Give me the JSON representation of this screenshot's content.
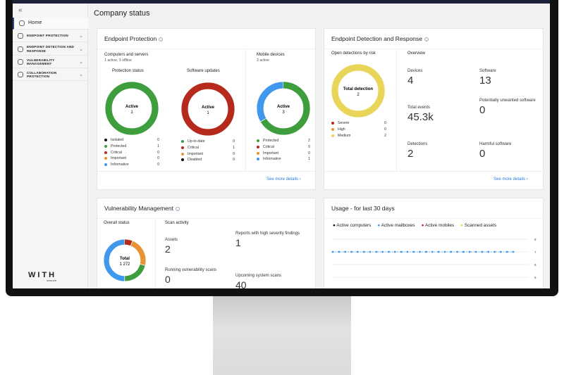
{
  "sidebar": {
    "collapse_icon": "double-chevron-left",
    "home": "Home",
    "items": [
      {
        "label": "ENDPOINT PROTECTION"
      },
      {
        "label": "ENDPOINT DETECTION AND RESPONSE"
      },
      {
        "label": "VULNERABILITY MANAGEMENT"
      },
      {
        "label": "COLLABORATION PROTECTION"
      }
    ],
    "logo": "WITH",
    "logo_sub": "secure"
  },
  "page_title": "Company status",
  "colors": {
    "green": "#3e9e3e",
    "red": "#b52a1c",
    "orange": "#e89434",
    "blue": "#3f98ec",
    "yellow": "#e8d55a",
    "black": "#111111",
    "link": "#2b7bd5"
  },
  "ep": {
    "title": "Endpoint Protection",
    "computers_title": "Computers and servers",
    "computers_sub": "1 active, 3 offline",
    "mobile_title": "Mobile devices",
    "mobile_sub": "3 active",
    "more": "See more details",
    "protection": {
      "title": "Protection status",
      "center_label": "Active",
      "center_value": "1",
      "items": [
        {
          "label": "Isolated",
          "value": 0,
          "color": "#111111"
        },
        {
          "label": "Protected",
          "value": 1,
          "color": "#3e9e3e"
        },
        {
          "label": "Critical",
          "value": 0,
          "color": "#b52a1c"
        },
        {
          "label": "Important",
          "value": 0,
          "color": "#e89434"
        },
        {
          "label": "Informative",
          "value": 0,
          "color": "#3f98ec"
        }
      ]
    },
    "updates": {
      "title": "Software updates",
      "center_label": "Active",
      "center_value": "1",
      "items": [
        {
          "label": "Up-to-date",
          "value": 0,
          "color": "#3e9e3e"
        },
        {
          "label": "Critical",
          "value": 1,
          "color": "#b52a1c"
        },
        {
          "label": "Important",
          "value": 0,
          "color": "#e89434"
        },
        {
          "label": "Disabled",
          "value": 0,
          "color": "#111111"
        }
      ]
    },
    "mobile": {
      "center_label": "Active",
      "center_value": "3",
      "items": [
        {
          "label": "Protected",
          "value": 2,
          "color": "#3e9e3e"
        },
        {
          "label": "Critical",
          "value": 0,
          "color": "#b52a1c"
        },
        {
          "label": "Important",
          "value": 0,
          "color": "#e89434"
        },
        {
          "label": "Informative",
          "value": 1,
          "color": "#3f98ec"
        }
      ]
    }
  },
  "edr": {
    "title": "Endpoint Detection and Response",
    "risk_title": "Open detections by risk",
    "more": "See more details",
    "risk": {
      "center_label": "Total detection",
      "center_value": "2",
      "items": [
        {
          "label": "Severe",
          "value": 0,
          "color": "#b52a1c"
        },
        {
          "label": "High",
          "value": 0,
          "color": "#e89434"
        },
        {
          "label": "Medium",
          "value": 2,
          "color": "#e8d55a"
        }
      ]
    },
    "overview_title": "Overview",
    "stats": [
      {
        "label": "Devices",
        "value": "4"
      },
      {
        "label": "Software",
        "value": "13"
      },
      {
        "label": "Total events",
        "value": "45.3k"
      },
      {
        "label": "Potentially unwanted software",
        "value": "0"
      },
      {
        "label": "Detections",
        "value": "2"
      },
      {
        "label": "Harmful software",
        "value": "0"
      }
    ]
  },
  "vm": {
    "title": "Vulnerability Management",
    "status_title": "Overall status",
    "donut": {
      "center_label": "Total",
      "center_value": "1 272",
      "items": [
        {
          "value": 80,
          "color": "#b52a1c"
        },
        {
          "value": 290,
          "color": "#e89434"
        },
        {
          "value": 270,
          "color": "#3e9e3e"
        },
        {
          "value": 632,
          "color": "#3f98ec"
        }
      ]
    },
    "scan_title": "Scan activity",
    "stats": [
      {
        "label": "Assets",
        "value": "2"
      },
      {
        "label": "Reports with high severity findings",
        "value": "1"
      },
      {
        "label": "Running vulnerability scans",
        "value": "0"
      },
      {
        "label": "Upcoming system scans",
        "value": "40"
      }
    ]
  },
  "usage": {
    "title": "Usage - for last 30 days",
    "chart_data": {
      "type": "line",
      "legend_position": "top-left",
      "series": [
        {
          "name": "Active computers",
          "color": "#111111",
          "values": []
        },
        {
          "name": "Active mailboxes",
          "color": "#3f98ec",
          "values": [
            7,
            7,
            7,
            7,
            7,
            7,
            7,
            7,
            7,
            7,
            7,
            7,
            7,
            7,
            7,
            7,
            7,
            7,
            7,
            7,
            7,
            7,
            7,
            7,
            7,
            7,
            7,
            7,
            7,
            7
          ]
        },
        {
          "name": "Active mobiles",
          "color": "#b52a1c",
          "values": []
        },
        {
          "name": "Scanned assets",
          "color": "#e8d55a",
          "values": []
        }
      ],
      "y_ticks": [
        "8",
        "7",
        "6",
        "5"
      ],
      "grid": true
    }
  }
}
